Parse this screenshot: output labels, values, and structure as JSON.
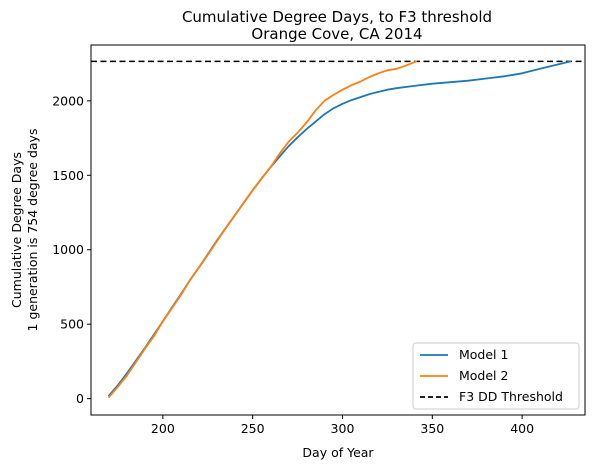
{
  "chart_data": {
    "type": "line",
    "title": "Cumulative Degree Days, to F3 threshold",
    "subtitle": "Orange Cove, CA 2014",
    "xlabel": "Day of Year",
    "ylabel": "Cumulative Degree Days",
    "ylabel2": "1 generation is 754 degree days",
    "xlim": [
      160,
      435
    ],
    "ylim": [
      -110,
      2375
    ],
    "xticks": [
      200,
      250,
      300,
      350,
      400
    ],
    "yticks": [
      0,
      500,
      1000,
      1500,
      2000
    ],
    "grid": false,
    "legend_position": "lower-right",
    "series": [
      {
        "name": "Model 1",
        "color": "#1f77b4",
        "style": "solid",
        "x": [
          170,
          175,
          180,
          185,
          190,
          195,
          200,
          205,
          210,
          215,
          220,
          225,
          230,
          235,
          240,
          245,
          250,
          255,
          260,
          265,
          270,
          275,
          280,
          285,
          290,
          295,
          300,
          305,
          310,
          315,
          320,
          325,
          330,
          340,
          350,
          360,
          370,
          380,
          390,
          400,
          410,
          420,
          427
        ],
        "y": [
          20,
          90,
          170,
          255,
          340,
          430,
          520,
          610,
          700,
          795,
          880,
          970,
          1060,
          1145,
          1230,
          1315,
          1400,
          1480,
          1555,
          1625,
          1695,
          1755,
          1810,
          1860,
          1910,
          1950,
          1980,
          2005,
          2025,
          2045,
          2060,
          2075,
          2085,
          2100,
          2115,
          2125,
          2135,
          2150,
          2165,
          2185,
          2215,
          2245,
          2265
        ]
      },
      {
        "name": "Model 2",
        "color": "#ff7f0e",
        "style": "solid",
        "x": [
          170,
          175,
          180,
          185,
          190,
          195,
          200,
          205,
          210,
          215,
          220,
          225,
          230,
          235,
          240,
          245,
          250,
          255,
          260,
          265,
          270,
          275,
          280,
          285,
          290,
          295,
          300,
          305,
          310,
          315,
          320,
          325,
          330,
          335,
          341
        ],
        "y": [
          10,
          80,
          155,
          245,
          335,
          420,
          520,
          605,
          695,
          795,
          880,
          965,
          1055,
          1145,
          1230,
          1315,
          1400,
          1480,
          1555,
          1645,
          1725,
          1785,
          1855,
          1935,
          2000,
          2040,
          2075,
          2105,
          2130,
          2160,
          2185,
          2205,
          2215,
          2235,
          2265
        ]
      }
    ],
    "threshold": {
      "name": "F3 DD Threshold",
      "value": 2265,
      "color": "#000000",
      "style": "dashed"
    }
  }
}
